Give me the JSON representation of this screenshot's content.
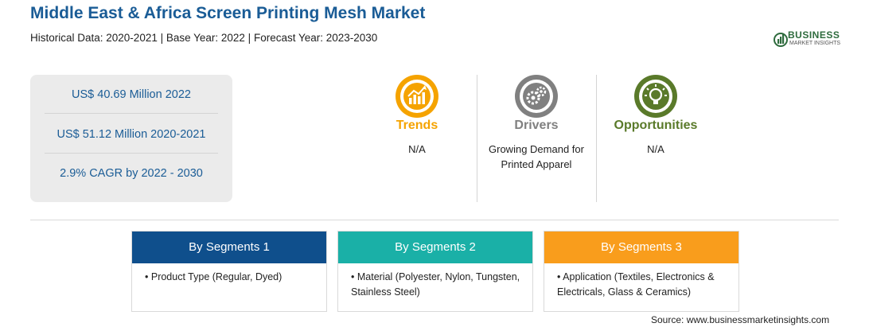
{
  "header": {
    "title": "Middle East & Africa Screen Printing Mesh Market",
    "subtitle": "Historical Data: 2020-2021 | Base Year: 2022 | Forecast Year: 2023-2030"
  },
  "logo": {
    "line1": "BUSINESS",
    "line2": "MARKET INSIGHTS"
  },
  "stats": [
    "US$ 40.69 Million 2022",
    "US$ 51.12 Million 2020-2021",
    "2.9% CAGR by 2022 - 2030"
  ],
  "factors": [
    {
      "icon": "trend-chart-icon",
      "title": "Trends",
      "text": "N/A",
      "color": "#f5a300"
    },
    {
      "icon": "gears-icon",
      "title": "Drivers",
      "text": "Growing Demand for Printed Apparel",
      "color": "#808080"
    },
    {
      "icon": "lightbulb-icon",
      "title": "Opportunities",
      "text": "N/A",
      "color": "#5a7a2a"
    }
  ],
  "segments": [
    {
      "title": "By Segments 1",
      "color": "#0f4f8c",
      "item": "Product Type (Regular, Dyed)"
    },
    {
      "title": "By Segments 2",
      "color": "#1ab0a7",
      "item": "Material (Polyester, Nylon, Tungsten, Stainless Steel)"
    },
    {
      "title": "By Segments 3",
      "color": "#f99d1c",
      "item": "Application (Textiles, Electronics & Electricals, Glass & Ceramics)"
    }
  ],
  "source": "Source: www.businessmarketinsights.com"
}
